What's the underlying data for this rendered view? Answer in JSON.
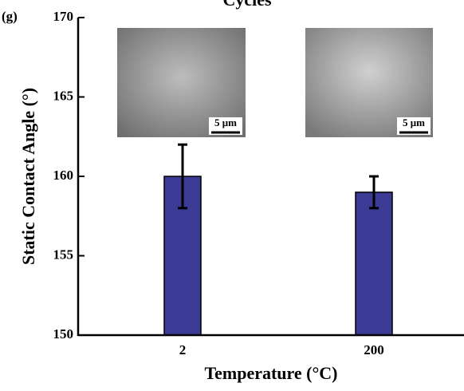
{
  "chart_data": {
    "type": "bar",
    "title": "Cycles",
    "panel_label": "(g)",
    "x_label": "Temperature (°C)",
    "y_label": "Static Contact Angle (°)",
    "categories": [
      "2",
      "200"
    ],
    "series": [
      {
        "color": "#3b3b96",
        "values": [
          160,
          159
        ],
        "errors": [
          2,
          1
        ]
      }
    ],
    "ylim": [
      150,
      170
    ],
    "yticks": [
      150,
      155,
      160,
      165,
      170
    ],
    "insets": [
      {
        "scale_label": "5 μm"
      },
      {
        "scale_label": "5 μm"
      }
    ]
  }
}
